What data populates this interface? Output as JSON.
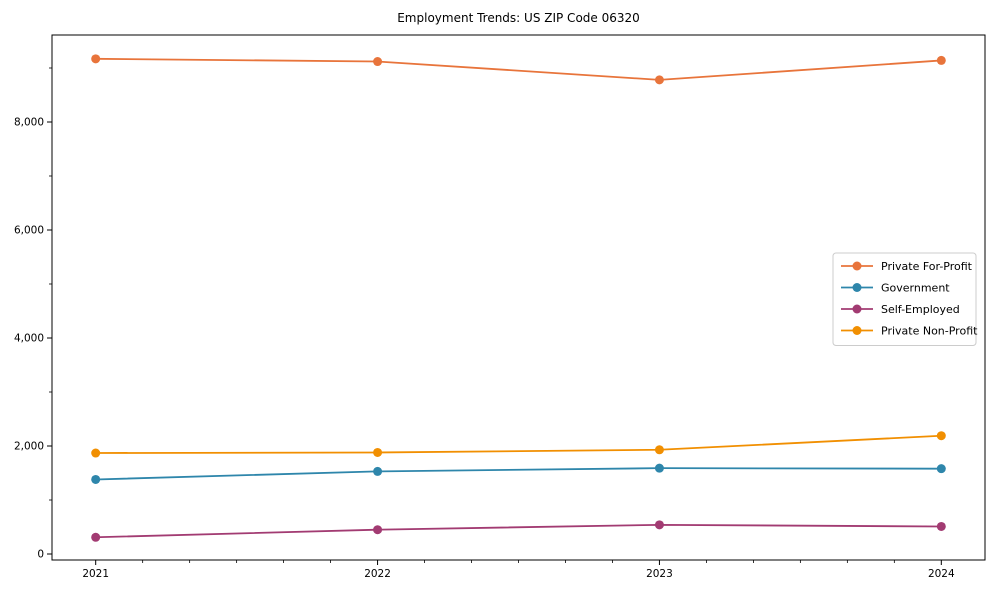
{
  "chart_data": {
    "type": "line",
    "title": "Employment Trends: US ZIP Code 06320",
    "x": [
      2021,
      2022,
      2023,
      2024
    ],
    "x_tick_labels": [
      "2021",
      "2022",
      "2023",
      "2024"
    ],
    "series": [
      {
        "name": "Private For-Profit",
        "color": "#E8743B",
        "values": [
          9170,
          9120,
          8780,
          9140
        ]
      },
      {
        "name": "Government",
        "color": "#2E86AB",
        "values": [
          1380,
          1530,
          1590,
          1580
        ]
      },
      {
        "name": "Self-Employed",
        "color": "#A23B72",
        "values": [
          310,
          450,
          540,
          510
        ]
      },
      {
        "name": "Private Non-Profit",
        "color": "#F18F01",
        "values": [
          1870,
          1880,
          1930,
          2190
        ]
      }
    ],
    "yticks": [
      {
        "value": 0,
        "label": "0"
      },
      {
        "value": 2000,
        "label": "2,000"
      },
      {
        "value": 4000,
        "label": "4,000"
      },
      {
        "value": 6000,
        "label": "6,000"
      },
      {
        "value": 8000,
        "label": "8,000"
      }
    ],
    "y_minor_step": 1000,
    "x_minor_per_interval": 6,
    "xlim": [
      2020.845,
      2024.155
    ],
    "ylim": [
      -111,
      9611
    ],
    "xlabel": "",
    "ylabel": "",
    "grid": false,
    "legend_position": "center right",
    "axis_color": "#000000",
    "tick_label_color": "#000000",
    "legend_border_color": "#cccccc",
    "legend_background": "#ffffff"
  }
}
